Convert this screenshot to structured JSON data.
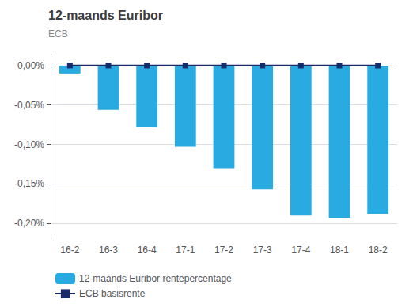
{
  "chart_data": {
    "type": "bar",
    "title": "12-maands Euribor",
    "subtitle": "ECB",
    "categories": [
      "16-2",
      "16-3",
      "16-4",
      "17-1",
      "17-2",
      "17-3",
      "17-4",
      "18-1",
      "18-2"
    ],
    "series": [
      {
        "name": "12-maands Euribor rentepercentage",
        "type": "bar",
        "color": "#29ABE2",
        "values": [
          -0.01,
          -0.056,
          -0.078,
          -0.103,
          -0.13,
          -0.157,
          -0.19,
          -0.193,
          -0.188
        ]
      },
      {
        "name": "ECB basisrente",
        "type": "line",
        "color": "#1A2B6B",
        "marker": "square",
        "values": [
          0.0,
          0.0,
          0.0,
          0.0,
          0.0,
          0.0,
          0.0,
          0.0,
          0.0
        ]
      }
    ],
    "ylim": [
      -0.22,
      0.015
    ],
    "yticks": [
      {
        "value": 0.0,
        "label": "0,00%"
      },
      {
        "value": -0.05,
        "label": "-0,05%"
      },
      {
        "value": -0.1,
        "label": "-0,10%"
      },
      {
        "value": -0.15,
        "label": "-0,15%"
      },
      {
        "value": -0.2,
        "label": "-0,20%"
      }
    ],
    "grid": true,
    "legend": "bottom"
  }
}
